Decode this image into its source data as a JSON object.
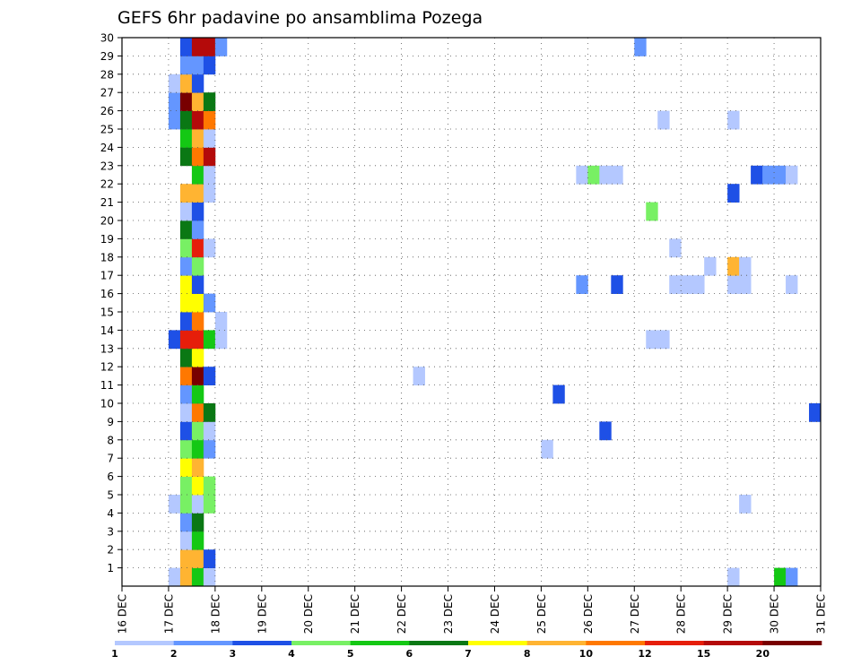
{
  "chart_data": {
    "type": "heatmap",
    "title": "GEFS 6hr padavine po ansamblima Pozega",
    "xlabel": "",
    "ylabel": "",
    "x_tick_labels": [
      "16 DEC",
      "17 DEC",
      "18 DEC",
      "19 DEC",
      "20 DEC",
      "21 DEC",
      "22 DEC",
      "23 DEC",
      "24 DEC",
      "25 DEC",
      "26 DEC",
      "27 DEC",
      "28 DEC",
      "29 DEC",
      "30 DEC",
      "31 DEC"
    ],
    "x_range": [
      "16 DEC 00Z",
      "31 DEC 00Z"
    ],
    "time_step_hours": 6,
    "y_tick_labels": [
      1,
      2,
      3,
      4,
      5,
      6,
      7,
      8,
      9,
      10,
      11,
      12,
      13,
      14,
      15,
      16,
      17,
      18,
      19,
      20,
      21,
      22,
      23,
      24,
      25,
      26,
      27,
      28,
      29,
      30
    ],
    "y_range": [
      0,
      30
    ],
    "grid": true,
    "colorbar": {
      "position": "bottom",
      "levels": [
        "1",
        "2",
        "3",
        "4",
        "5",
        "6",
        "7",
        "8",
        "10",
        "12",
        "15",
        "20"
      ],
      "colors": [
        "#b4c8ff",
        "#6496ff",
        "#1e50e6",
        "#78f064",
        "#14c814",
        "#0a7814",
        "#ffff00",
        "#ffb432",
        "#ff7800",
        "#e61e0a",
        "#b40a0a",
        "#780000"
      ]
    },
    "palette": [
      "#b4c8ff",
      "#6496ff",
      "#1e50e6",
      "#78f064",
      "#14c814",
      "#0a7814",
      "#ffff00",
      "#ffb432",
      "#ff7800",
      "#e61e0a",
      "#b40a0a",
      "#780000"
    ],
    "members": [
      {
        "member": 0,
        "cells": [
          [
            4,
            1
          ],
          [
            5,
            8
          ],
          [
            6,
            5
          ],
          [
            7,
            1
          ],
          [
            52,
            1
          ],
          [
            56,
            5
          ],
          [
            57,
            2
          ]
        ]
      },
      {
        "member": 1,
        "cells": [
          [
            5,
            8
          ],
          [
            6,
            8
          ],
          [
            7,
            3
          ]
        ]
      },
      {
        "member": 2,
        "cells": [
          [
            5,
            1
          ],
          [
            6,
            5
          ]
        ]
      },
      {
        "member": 3,
        "cells": [
          [
            5,
            2
          ],
          [
            6,
            6
          ]
        ]
      },
      {
        "member": 4,
        "cells": [
          [
            4,
            1
          ],
          [
            5,
            4
          ],
          [
            6,
            1
          ],
          [
            7,
            4
          ],
          [
            53,
            1
          ]
        ]
      },
      {
        "member": 5,
        "cells": [
          [
            5,
            4
          ],
          [
            6,
            7
          ],
          [
            7,
            4
          ]
        ]
      },
      {
        "member": 6,
        "cells": [
          [
            5,
            7
          ],
          [
            6,
            8
          ]
        ]
      },
      {
        "member": 7,
        "cells": [
          [
            5,
            4
          ],
          [
            6,
            5
          ],
          [
            7,
            2
          ],
          [
            36,
            1
          ]
        ]
      },
      {
        "member": 8,
        "cells": [
          [
            5,
            3
          ],
          [
            6,
            4
          ],
          [
            7,
            1
          ],
          [
            41,
            3
          ]
        ]
      },
      {
        "member": 9,
        "cells": [
          [
            5,
            1
          ],
          [
            6,
            9
          ],
          [
            7,
            6
          ],
          [
            59,
            3
          ]
        ]
      },
      {
        "member": 10,
        "cells": [
          [
            5,
            2
          ],
          [
            6,
            5
          ],
          [
            37,
            3
          ]
        ]
      },
      {
        "member": 11,
        "cells": [
          [
            5,
            9
          ],
          [
            6,
            12
          ],
          [
            7,
            3
          ],
          [
            25,
            1
          ]
        ]
      },
      {
        "member": 12,
        "cells": [
          [
            5,
            6
          ],
          [
            6,
            7
          ]
        ]
      },
      {
        "member": 13,
        "cells": [
          [
            4,
            3
          ],
          [
            5,
            10
          ],
          [
            6,
            10
          ],
          [
            7,
            5
          ],
          [
            8,
            1
          ],
          [
            45,
            1
          ],
          [
            46,
            1
          ]
        ]
      },
      {
        "member": 14,
        "cells": [
          [
            5,
            3
          ],
          [
            6,
            9
          ],
          [
            8,
            1
          ]
        ]
      },
      {
        "member": 15,
        "cells": [
          [
            5,
            7
          ],
          [
            6,
            7
          ],
          [
            7,
            2
          ]
        ]
      },
      {
        "member": 16,
        "cells": [
          [
            5,
            7
          ],
          [
            6,
            3
          ],
          [
            39,
            2
          ],
          [
            42,
            3
          ],
          [
            47,
            1
          ],
          [
            48,
            1
          ],
          [
            49,
            1
          ],
          [
            52,
            1
          ],
          [
            53,
            1
          ],
          [
            57,
            1
          ]
        ]
      },
      {
        "member": 17,
        "cells": [
          [
            5,
            2
          ],
          [
            6,
            4
          ],
          [
            50,
            1
          ],
          [
            52,
            8
          ],
          [
            53,
            1
          ]
        ]
      },
      {
        "member": 18,
        "cells": [
          [
            5,
            4
          ],
          [
            6,
            10
          ],
          [
            7,
            1
          ],
          [
            47,
            1
          ]
        ]
      },
      {
        "member": 19,
        "cells": [
          [
            5,
            6
          ],
          [
            6,
            2
          ]
        ]
      },
      {
        "member": 20,
        "cells": [
          [
            5,
            1
          ],
          [
            6,
            3
          ],
          [
            45,
            4
          ]
        ]
      },
      {
        "member": 21,
        "cells": [
          [
            5,
            8
          ],
          [
            6,
            8
          ],
          [
            7,
            1
          ],
          [
            52,
            3
          ]
        ]
      },
      {
        "member": 22,
        "cells": [
          [
            6,
            5
          ],
          [
            7,
            1
          ],
          [
            39,
            1
          ],
          [
            40,
            4
          ],
          [
            41,
            1
          ],
          [
            42,
            1
          ],
          [
            54,
            3
          ],
          [
            55,
            2
          ],
          [
            56,
            2
          ],
          [
            57,
            1
          ]
        ]
      },
      {
        "member": 23,
        "cells": [
          [
            5,
            6
          ],
          [
            6,
            9
          ],
          [
            7,
            11
          ]
        ]
      },
      {
        "member": 24,
        "cells": [
          [
            5,
            5
          ],
          [
            6,
            8
          ],
          [
            7,
            1
          ]
        ]
      },
      {
        "member": 25,
        "cells": [
          [
            4,
            2
          ],
          [
            5,
            6
          ],
          [
            6,
            11
          ],
          [
            7,
            9
          ],
          [
            46,
            1
          ],
          [
            52,
            1
          ]
        ]
      },
      {
        "member": 26,
        "cells": [
          [
            4,
            2
          ],
          [
            5,
            12
          ],
          [
            6,
            8
          ],
          [
            7,
            6
          ]
        ]
      },
      {
        "member": 27,
        "cells": [
          [
            4,
            1
          ],
          [
            5,
            8
          ],
          [
            6,
            3
          ]
        ]
      },
      {
        "member": 28,
        "cells": [
          [
            5,
            2
          ],
          [
            6,
            2
          ],
          [
            7,
            3
          ]
        ]
      },
      {
        "member": 29,
        "cells": [
          [
            5,
            3
          ],
          [
            6,
            11
          ],
          [
            7,
            11
          ],
          [
            8,
            2
          ],
          [
            44,
            2
          ]
        ]
      }
    ]
  }
}
